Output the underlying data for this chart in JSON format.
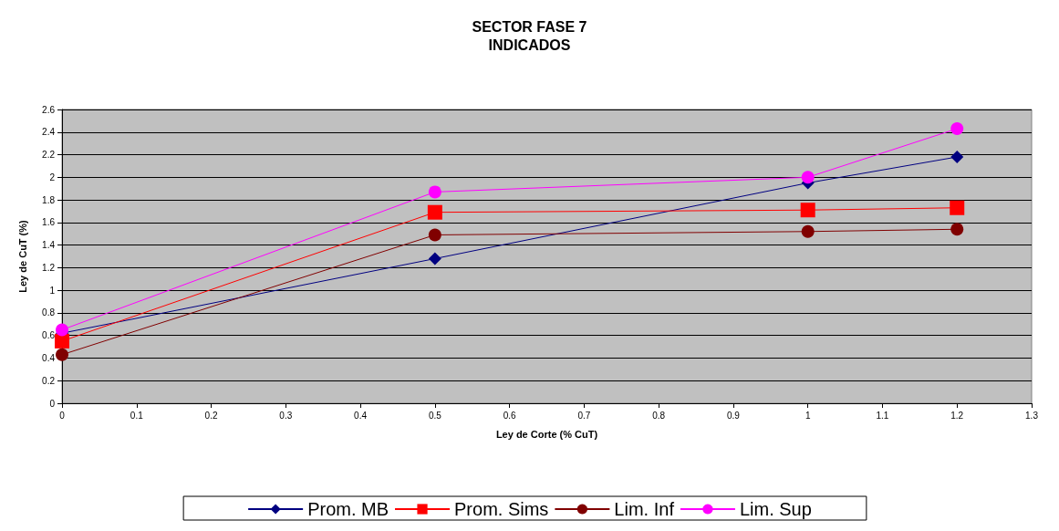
{
  "chart_data": {
    "type": "line",
    "title": "SECTOR FASE 7",
    "subtitle": "INDICADOS",
    "xlabel": "Ley de Corte (% CuT)",
    "ylabel": "Ley de CuT (%)",
    "x": [
      0,
      0.5,
      1,
      1.2
    ],
    "series": [
      {
        "name": "Prom. MB",
        "color": "#000080",
        "marker": "diamond",
        "values": [
          0.62,
          1.28,
          1.95,
          2.18
        ]
      },
      {
        "name": "Prom. Sims",
        "color": "#ff0000",
        "marker": "square",
        "values": [
          0.55,
          1.69,
          1.71,
          1.73
        ]
      },
      {
        "name": "Lim. Inf",
        "color": "#800000",
        "marker": "circle",
        "values": [
          0.43,
          1.49,
          1.52,
          1.54
        ]
      },
      {
        "name": "Lim. Sup",
        "color": "#ff00ff",
        "marker": "circle",
        "values": [
          0.65,
          1.87,
          2.0,
          2.43
        ]
      }
    ],
    "xlim": [
      0,
      1.3
    ],
    "xticks": [
      0,
      0.1,
      0.2,
      0.3,
      0.4,
      0.5,
      0.6,
      0.7,
      0.8,
      0.9,
      1,
      1.1,
      1.2,
      1.3
    ],
    "ylim": [
      0,
      2.6
    ],
    "yticks": [
      0,
      0.2,
      0.4,
      0.6,
      0.8,
      1,
      1.2,
      1.4,
      1.6,
      1.8,
      2,
      2.2,
      2.4,
      2.6
    ],
    "grid": "y",
    "legend": "bottom"
  }
}
